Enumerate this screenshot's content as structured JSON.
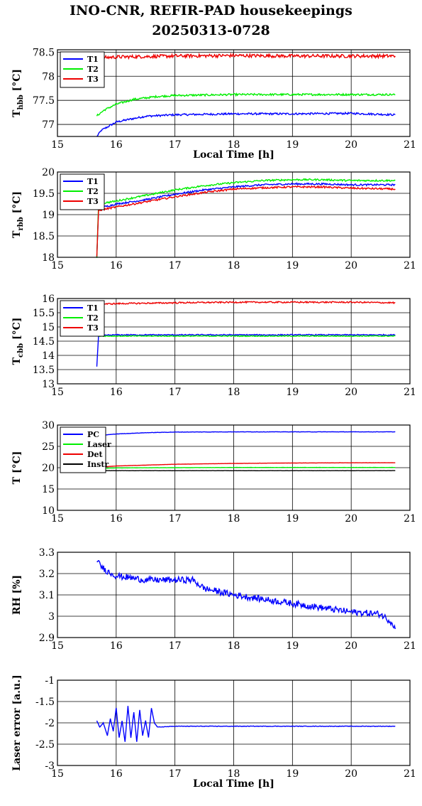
{
  "title_line1": "INO-CNR, REFIR-PAD housekeepings",
  "title_line2": "20250313-0728",
  "colors": {
    "blue": "#0000ff",
    "green": "#00ee00",
    "red": "#ee0000",
    "black": "#000000"
  },
  "chart_data": [
    {
      "type": "line",
      "ylabel_main": "T",
      "ylabel_sub": "hbb",
      "ylabel_unit": " [°C]",
      "xlabel": "Local Time [h]",
      "xlim": [
        15,
        21
      ],
      "ylim": [
        76.75,
        78.55
      ],
      "xticks": [
        "15",
        "16",
        "17",
        "18",
        "19",
        "20",
        "21"
      ],
      "yticks": [
        {
          "v": 77,
          "t": "77"
        },
        {
          "v": 77.5,
          "t": "77.5"
        },
        {
          "v": 78,
          "t": "78"
        },
        {
          "v": 78.5,
          "t": "78.5"
        }
      ],
      "grid": true,
      "legend": "top-left",
      "series": [
        {
          "name": "T1",
          "color": "blue",
          "noise": 0.02,
          "points": [
            [
              15.67,
              76.75
            ],
            [
              15.75,
              76.88
            ],
            [
              15.9,
              76.98
            ],
            [
              16.0,
              77.05
            ],
            [
              16.2,
              77.1
            ],
            [
              16.5,
              77.17
            ],
            [
              17.0,
              77.2
            ],
            [
              18.0,
              77.22
            ],
            [
              19.0,
              77.22
            ],
            [
              20.0,
              77.23
            ],
            [
              20.75,
              77.2
            ]
          ]
        },
        {
          "name": "T2",
          "color": "green",
          "noise": 0.02,
          "points": [
            [
              15.67,
              77.18
            ],
            [
              15.8,
              77.3
            ],
            [
              16.0,
              77.42
            ],
            [
              16.3,
              77.52
            ],
            [
              16.7,
              77.58
            ],
            [
              17.0,
              77.6
            ],
            [
              18.0,
              77.62
            ],
            [
              19.0,
              77.62
            ],
            [
              20.0,
              77.62
            ],
            [
              20.75,
              77.62
            ]
          ]
        },
        {
          "name": "T3",
          "color": "red",
          "noise": 0.035,
          "points": [
            [
              15.67,
              78.38
            ],
            [
              16.0,
              78.4
            ],
            [
              17.0,
              78.42
            ],
            [
              18.0,
              78.43
            ],
            [
              19.0,
              78.42
            ],
            [
              20.0,
              78.42
            ],
            [
              20.75,
              78.42
            ]
          ]
        }
      ]
    },
    {
      "type": "line",
      "ylabel_main": "T",
      "ylabel_sub": "rbb",
      "ylabel_unit": " [°C]",
      "xlabel": "",
      "xlim": [
        15,
        21
      ],
      "ylim": [
        18,
        20
      ],
      "xticks": [
        "15",
        "16",
        "17",
        "18",
        "19",
        "20",
        "21"
      ],
      "yticks": [
        {
          "v": 18,
          "t": "18"
        },
        {
          "v": 18.5,
          "t": "18.5"
        },
        {
          "v": 19,
          "t": "19"
        },
        {
          "v": 19.5,
          "t": "19.5"
        },
        {
          "v": 20,
          "t": "20"
        }
      ],
      "grid": true,
      "legend": "top-left",
      "series": [
        {
          "name": "T1",
          "color": "blue",
          "noise": 0.02,
          "points": [
            [
              15.67,
              18.0
            ],
            [
              15.7,
              19.15
            ],
            [
              16.0,
              19.25
            ],
            [
              16.5,
              19.35
            ],
            [
              17.0,
              19.48
            ],
            [
              17.5,
              19.58
            ],
            [
              18.0,
              19.65
            ],
            [
              18.5,
              19.7
            ],
            [
              19.0,
              19.72
            ],
            [
              19.5,
              19.72
            ],
            [
              20.0,
              19.7
            ],
            [
              20.75,
              19.7
            ]
          ]
        },
        {
          "name": "T2",
          "color": "green",
          "noise": 0.02,
          "points": [
            [
              15.67,
              18.0
            ],
            [
              15.7,
              19.25
            ],
            [
              16.0,
              19.32
            ],
            [
              16.5,
              19.45
            ],
            [
              17.0,
              19.58
            ],
            [
              17.5,
              19.68
            ],
            [
              18.0,
              19.75
            ],
            [
              18.5,
              19.8
            ],
            [
              19.0,
              19.82
            ],
            [
              19.5,
              19.82
            ],
            [
              20.0,
              19.8
            ],
            [
              20.75,
              19.8
            ]
          ]
        },
        {
          "name": "T3",
          "color": "red",
          "noise": 0.02,
          "points": [
            [
              15.67,
              18.0
            ],
            [
              15.7,
              19.1
            ],
            [
              16.0,
              19.18
            ],
            [
              16.5,
              19.3
            ],
            [
              17.0,
              19.42
            ],
            [
              17.5,
              19.52
            ],
            [
              18.0,
              19.6
            ],
            [
              18.5,
              19.63
            ],
            [
              19.0,
              19.65
            ],
            [
              19.5,
              19.65
            ],
            [
              20.0,
              19.62
            ],
            [
              20.75,
              19.6
            ]
          ]
        }
      ]
    },
    {
      "type": "line",
      "ylabel_main": "T",
      "ylabel_sub": "cbb",
      "ylabel_unit": " [°C]",
      "xlabel": "",
      "xlim": [
        15,
        21
      ],
      "ylim": [
        13,
        16
      ],
      "xticks": [
        "15",
        "16",
        "17",
        "18",
        "19",
        "20",
        "21"
      ],
      "yticks": [
        {
          "v": 13,
          "t": "13"
        },
        {
          "v": 13.5,
          "t": "13.5"
        },
        {
          "v": 14,
          "t": "14"
        },
        {
          "v": 14.5,
          "t": "14.5"
        },
        {
          "v": 15,
          "t": "15"
        },
        {
          "v": 15.5,
          "t": "15.5"
        },
        {
          "v": 16,
          "t": "16"
        }
      ],
      "grid": true,
      "legend": "top-left",
      "series": [
        {
          "name": "T1",
          "color": "blue",
          "noise": 0.02,
          "points": [
            [
              15.67,
              13.6
            ],
            [
              15.7,
              14.7
            ],
            [
              16.0,
              14.72
            ],
            [
              17.0,
              14.72
            ],
            [
              18.0,
              14.72
            ],
            [
              19.0,
              14.72
            ],
            [
              20.0,
              14.72
            ],
            [
              20.75,
              14.72
            ]
          ]
        },
        {
          "name": "T2",
          "color": "green",
          "noise": 0.015,
          "points": [
            [
              15.7,
              14.68
            ],
            [
              16.0,
              14.68
            ],
            [
              17.0,
              14.68
            ],
            [
              18.0,
              14.68
            ],
            [
              19.0,
              14.68
            ],
            [
              20.0,
              14.68
            ],
            [
              20.75,
              14.68
            ]
          ]
        },
        {
          "name": "T3",
          "color": "red",
          "noise": 0.025,
          "points": [
            [
              15.67,
              15.8
            ],
            [
              16.0,
              15.82
            ],
            [
              17.0,
              15.85
            ],
            [
              18.0,
              15.87
            ],
            [
              19.0,
              15.87
            ],
            [
              20.0,
              15.87
            ],
            [
              20.75,
              15.85
            ]
          ]
        }
      ]
    },
    {
      "type": "line",
      "ylabel_main": "T [°C]",
      "ylabel_sub": "",
      "ylabel_unit": "",
      "xlabel": "",
      "xlim": [
        15,
        21
      ],
      "ylim": [
        10,
        30
      ],
      "xticks": [
        "15",
        "16",
        "17",
        "18",
        "19",
        "20",
        "21"
      ],
      "yticks": [
        {
          "v": 10,
          "t": "10"
        },
        {
          "v": 15,
          "t": "15"
        },
        {
          "v": 20,
          "t": "20"
        },
        {
          "v": 25,
          "t": "25"
        },
        {
          "v": 30,
          "t": "30"
        }
      ],
      "grid": true,
      "legend": "top-left",
      "series": [
        {
          "name": "PC",
          "color": "blue",
          "noise": 0.04,
          "points": [
            [
              15.67,
              27.5
            ],
            [
              16.0,
              27.9
            ],
            [
              16.5,
              28.2
            ],
            [
              17.0,
              28.35
            ],
            [
              18.0,
              28.4
            ],
            [
              19.0,
              28.4
            ],
            [
              20.0,
              28.4
            ],
            [
              20.75,
              28.4
            ]
          ]
        },
        {
          "name": "Laser",
          "color": "green",
          "noise": 0.02,
          "points": [
            [
              15.67,
              19.8
            ],
            [
              16.0,
              19.95
            ],
            [
              17.0,
              20.0
            ],
            [
              18.0,
              20.05
            ],
            [
              19.0,
              20.05
            ],
            [
              20.0,
              20.05
            ],
            [
              20.75,
              20.05
            ]
          ]
        },
        {
          "name": "Det",
          "color": "red",
          "noise": 0.02,
          "points": [
            [
              15.67,
              20.1
            ],
            [
              16.0,
              20.4
            ],
            [
              17.0,
              20.8
            ],
            [
              18.0,
              21.0
            ],
            [
              19.0,
              21.1
            ],
            [
              20.0,
              21.15
            ],
            [
              20.75,
              21.15
            ]
          ]
        },
        {
          "name": "Instr",
          "color": "black",
          "noise": 0.02,
          "points": [
            [
              15.67,
              19.3
            ],
            [
              16.0,
              19.3
            ],
            [
              17.0,
              19.3
            ],
            [
              18.0,
              19.3
            ],
            [
              19.0,
              19.3
            ],
            [
              20.0,
              19.3
            ],
            [
              20.75,
              19.3
            ]
          ]
        }
      ]
    },
    {
      "type": "line",
      "ylabel_main": "RH [%]",
      "ylabel_sub": "",
      "ylabel_unit": "",
      "xlabel": "",
      "xlim": [
        15,
        21
      ],
      "ylim": [
        2.9,
        3.3
      ],
      "xticks": [
        "15",
        "16",
        "17",
        "18",
        "19",
        "20",
        "21"
      ],
      "yticks": [
        {
          "v": 2.9,
          "t": "2.9"
        },
        {
          "v": 3.0,
          "t": "3"
        },
        {
          "v": 3.1,
          "t": "3.1"
        },
        {
          "v": 3.2,
          "t": "3.2"
        },
        {
          "v": 3.3,
          "t": "3.3"
        }
      ],
      "grid": true,
      "legend": "none",
      "series": [
        {
          "name": "",
          "color": "blue",
          "noise": 0.015,
          "points": [
            [
              15.67,
              3.27
            ],
            [
              15.72,
              3.24
            ],
            [
              15.85,
              3.21
            ],
            [
              16.0,
              3.19
            ],
            [
              16.5,
              3.17
            ],
            [
              17.0,
              3.17
            ],
            [
              17.3,
              3.17
            ],
            [
              17.5,
              3.13
            ],
            [
              18.0,
              3.1
            ],
            [
              18.5,
              3.08
            ],
            [
              19.0,
              3.06
            ],
            [
              19.5,
              3.04
            ],
            [
              20.0,
              3.02
            ],
            [
              20.5,
              3.01
            ],
            [
              20.7,
              2.97
            ],
            [
              20.75,
              2.94
            ]
          ]
        }
      ]
    },
    {
      "type": "line",
      "ylabel_main": "Laser error [a.u.]",
      "ylabel_sub": "",
      "ylabel_unit": "",
      "xlabel": "Local Time [h]",
      "xlim": [
        15,
        21
      ],
      "ylim": [
        -3,
        -1
      ],
      "xticks": [
        "15",
        "16",
        "17",
        "18",
        "19",
        "20",
        "21"
      ],
      "yticks": [
        {
          "v": -3,
          "t": "-3"
        },
        {
          "v": -2.5,
          "t": "-2.5"
        },
        {
          "v": -2,
          "t": "-2"
        },
        {
          "v": -1.5,
          "t": "-1.5"
        },
        {
          "v": -1,
          "t": "-1"
        }
      ],
      "grid": true,
      "legend": "none",
      "series": [
        {
          "name": "",
          "color": "blue",
          "noise": 0.006,
          "points": [
            [
              15.67,
              -1.95
            ],
            [
              15.72,
              -2.1
            ],
            [
              15.78,
              -2.0
            ],
            [
              15.85,
              -2.3
            ],
            [
              15.9,
              -1.9
            ],
            [
              15.95,
              -2.2
            ],
            [
              16.0,
              -1.65
            ],
            [
              16.05,
              -2.35
            ],
            [
              16.1,
              -1.95
            ],
            [
              16.15,
              -2.45
            ],
            [
              16.2,
              -1.6
            ],
            [
              16.25,
              -2.35
            ],
            [
              16.3,
              -1.75
            ],
            [
              16.35,
              -2.45
            ],
            [
              16.4,
              -1.7
            ],
            [
              16.45,
              -2.3
            ],
            [
              16.5,
              -1.95
            ],
            [
              16.55,
              -2.35
            ],
            [
              16.6,
              -1.65
            ],
            [
              16.65,
              -2.0
            ],
            [
              16.7,
              -2.1
            ],
            [
              17.0,
              -2.08
            ],
            [
              18.0,
              -2.08
            ],
            [
              19.0,
              -2.08
            ],
            [
              20.0,
              -2.08
            ],
            [
              20.75,
              -2.08
            ]
          ]
        }
      ]
    }
  ]
}
